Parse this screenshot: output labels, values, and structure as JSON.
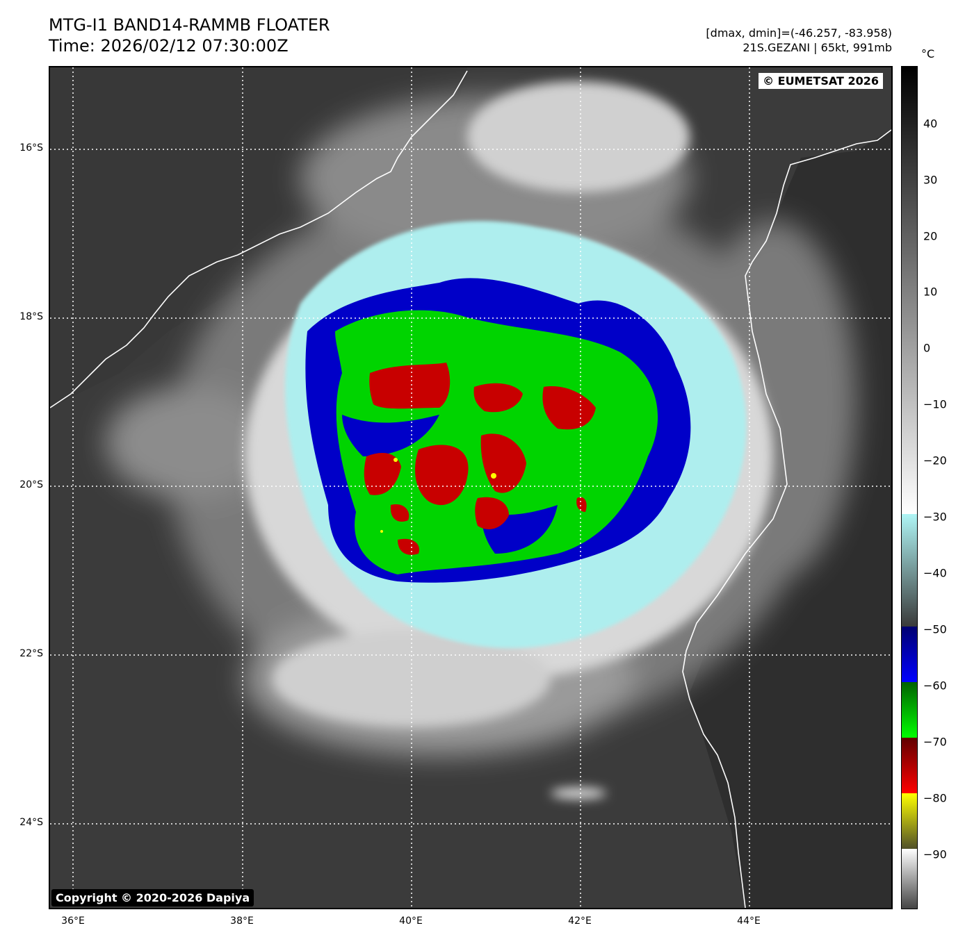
{
  "header": {
    "title_line1": "MTG-I1 BAND14-RAMMB FLOATER",
    "title_line2": "Time: 2026/02/12 07:30:00Z",
    "range_text": "[dmax, dmin]=(-46.257, -83.958)",
    "storm_text": "21S.GEZANI | 65kt, 991mb"
  },
  "map": {
    "watermark_top": "© EUMETSAT 2026",
    "watermark_bottom": "Copyright © 2020-2026 Dapiya",
    "lat_labels": [
      "16°S",
      "18°S",
      "20°S",
      "22°S",
      "24°S"
    ],
    "lon_labels": [
      "36°E",
      "38°E",
      "40°E",
      "42°E",
      "44°E"
    ],
    "colors": {
      "background_gray": "#3b3b3b",
      "cloud_white": "#e6e6e6",
      "cyan": "#aeeeee",
      "blue": "#0000c8",
      "green": "#00d400",
      "red": "#c80000",
      "yellow": "#ffff00",
      "coast": "#ffffff"
    }
  },
  "colorbar": {
    "unit": "°C",
    "ticks": [
      "40",
      "30",
      "20",
      "10",
      "0",
      "−10",
      "−20",
      "−30",
      "−40",
      "−50",
      "−60",
      "−70",
      "−80",
      "−90"
    ]
  }
}
